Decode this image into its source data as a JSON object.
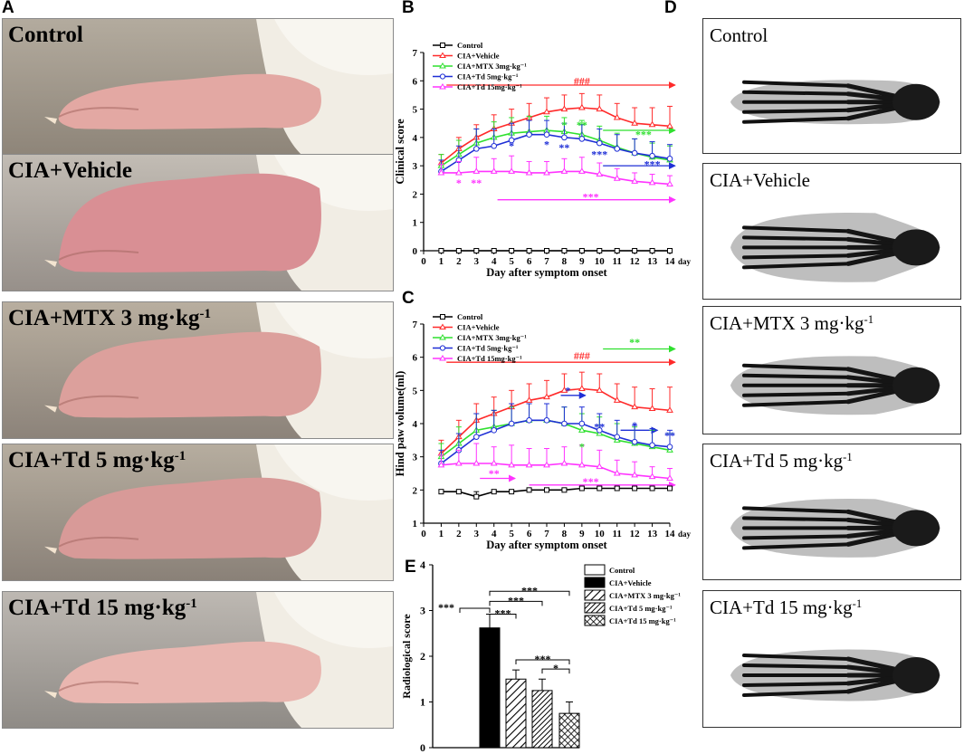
{
  "panels": {
    "A": "A",
    "B": "B",
    "C": "C",
    "D": "D",
    "E": "E"
  },
  "photos": [
    {
      "label": "Control",
      "sup": ""
    },
    {
      "label": "CIA+Vehicle",
      "sup": ""
    },
    {
      "label": "CIA+MTX 3 mg·kg",
      "sup": "-1"
    },
    {
      "label": "CIA+Td 5 mg·kg",
      "sup": "-1"
    },
    {
      "label": "CIA+Td 15 mg·kg",
      "sup": "-1"
    }
  ],
  "xrays": [
    {
      "label": "Control",
      "sup": ""
    },
    {
      "label": "CIA+Vehicle",
      "sup": ""
    },
    {
      "label": "CIA+MTX 3 mg·kg",
      "sup": "-1"
    },
    {
      "label": "CIA+Td 5 mg·kg",
      "sup": "-1"
    },
    {
      "label": "CIA+Td 15 mg·kg",
      "sup": "-1"
    }
  ],
  "colors": {
    "control": "#000000",
    "vehicle": "#ff2a2a",
    "mtx": "#2fe02f",
    "td5": "#1f2fd6",
    "td15": "#ff33ff"
  },
  "chart_data": [
    {
      "type": "line",
      "panel": "B",
      "xlabel": "Day after symptom onset",
      "ylabel": "Clinical score",
      "x_unit": "day",
      "xlim": [
        0,
        14
      ],
      "ylim": [
        0,
        7
      ],
      "x": [
        1,
        2,
        3,
        4,
        5,
        6,
        7,
        8,
        9,
        10,
        11,
        12,
        13,
        14
      ],
      "series": [
        {
          "name": "Control",
          "color": "#000000",
          "marker": "square",
          "values": [
            0,
            0,
            0,
            0,
            0,
            0,
            0,
            0,
            0,
            0,
            0,
            0,
            0,
            0
          ],
          "err": [
            0,
            0,
            0,
            0,
            0,
            0,
            0,
            0,
            0,
            0,
            0,
            0,
            0,
            0
          ]
        },
        {
          "name": "CIA+Vehicle",
          "color": "#ff2a2a",
          "marker": "triangle",
          "values": [
            3.1,
            3.6,
            4.0,
            4.3,
            4.5,
            4.7,
            4.9,
            5.0,
            5.05,
            5.0,
            4.7,
            4.5,
            4.45,
            4.4
          ],
          "err": [
            0.3,
            0.4,
            0.45,
            0.5,
            0.5,
            0.5,
            0.5,
            0.5,
            0.5,
            0.5,
            0.5,
            0.55,
            0.6,
            0.7
          ]
        },
        {
          "name": "CIA+MTX 3mg·kg⁻¹",
          "color": "#2fe02f",
          "marker": "triangle",
          "values": [
            3.0,
            3.4,
            3.8,
            4.0,
            4.15,
            4.2,
            4.25,
            4.2,
            4.1,
            3.9,
            3.65,
            3.45,
            3.3,
            3.2
          ],
          "err": [
            0.4,
            0.5,
            0.5,
            0.55,
            0.55,
            0.55,
            0.5,
            0.5,
            0.5,
            0.5,
            0.5,
            0.5,
            0.5,
            0.5
          ]
        },
        {
          "name": "CIA+Td 5mg·kg⁻¹",
          "color": "#1f2fd6",
          "marker": "circle",
          "values": [
            2.8,
            3.2,
            3.6,
            3.7,
            3.9,
            4.1,
            4.1,
            4.0,
            3.95,
            3.8,
            3.6,
            3.45,
            3.35,
            3.25
          ],
          "err": [
            0.4,
            0.5,
            0.7,
            0.6,
            0.6,
            0.5,
            0.5,
            0.5,
            0.5,
            0.5,
            0.5,
            0.5,
            0.5,
            0.5
          ]
        },
        {
          "name": "CIA+Td 15mg·kg⁻¹",
          "color": "#ff33ff",
          "marker": "triangle",
          "values": [
            2.75,
            2.75,
            2.8,
            2.8,
            2.8,
            2.75,
            2.75,
            2.8,
            2.8,
            2.7,
            2.55,
            2.45,
            2.4,
            2.35
          ],
          "err": [
            0.3,
            0.4,
            0.5,
            0.45,
            0.55,
            0.4,
            0.4,
            0.45,
            0.5,
            0.4,
            0.35,
            0.3,
            0.3,
            0.3
          ]
        }
      ],
      "annotations": [
        {
          "text": "###",
          "color": "#ff2a2a",
          "x": 9,
          "y": 6.0
        },
        {
          "text": "*",
          "color": "#ff33ff",
          "x": 2,
          "y": 2.4
        },
        {
          "text": "**",
          "color": "#ff33ff",
          "x": 3,
          "y": 2.4
        },
        {
          "text": "*",
          "color": "#1f2fd6",
          "x": 5,
          "y": 3.7
        },
        {
          "text": "*",
          "color": "#1f2fd6",
          "x": 7,
          "y": 3.75
        },
        {
          "text": "**",
          "color": "#1f2fd6",
          "x": 8,
          "y": 3.65
        },
        {
          "text": "*",
          "color": "#2fe02f",
          "x": 8,
          "y": 4.45
        },
        {
          "text": "**",
          "color": "#2fe02f",
          "x": 9,
          "y": 4.45
        },
        {
          "text": "***",
          "color": "#1f2fd6",
          "x": 10,
          "y": 3.4
        },
        {
          "text": "***",
          "color": "#2fe02f",
          "x": 12.5,
          "y": 4.1
        },
        {
          "text": "***",
          "color": "#1f2fd6",
          "x": 13,
          "y": 3.05
        },
        {
          "text": "***",
          "color": "#ff33ff",
          "x": 9.5,
          "y": 1.9
        }
      ],
      "arrows": [
        {
          "color": "#ff2a2a",
          "x1": 1.3,
          "x2": 14.3,
          "y": 5.85
        },
        {
          "color": "#2fe02f",
          "x1": 10.2,
          "x2": 14.3,
          "y": 4.25
        },
        {
          "color": "#1f2fd6",
          "x1": 10.2,
          "x2": 14.3,
          "y": 3.0
        },
        {
          "color": "#ff33ff",
          "x1": 4.2,
          "x2": 14.3,
          "y": 1.8
        }
      ]
    },
    {
      "type": "line",
      "panel": "C",
      "xlabel": "Day after symptom onset",
      "ylabel": "Hind paw volume(ml)",
      "x_unit": "day",
      "xlim": [
        0,
        14
      ],
      "ylim": [
        1,
        7
      ],
      "x": [
        1,
        2,
        3,
        4,
        5,
        6,
        7,
        8,
        9,
        10,
        11,
        12,
        13,
        14
      ],
      "series": [
        {
          "name": "Control",
          "color": "#000000",
          "marker": "square",
          "values": [
            1.95,
            1.95,
            1.8,
            1.95,
            1.95,
            2.0,
            2.0,
            2.0,
            2.05,
            2.05,
            2.05,
            2.05,
            2.05,
            2.05
          ],
          "err": [
            0.05,
            0.05,
            0.15,
            0.05,
            0.05,
            0.05,
            0.05,
            0.05,
            0.05,
            0.05,
            0.05,
            0.05,
            0.05,
            0.05
          ]
        },
        {
          "name": "CIA+Vehicle",
          "color": "#ff2a2a",
          "marker": "triangle",
          "values": [
            3.1,
            3.6,
            4.1,
            4.3,
            4.5,
            4.7,
            4.8,
            5.0,
            5.05,
            5.0,
            4.7,
            4.5,
            4.45,
            4.4
          ],
          "err": [
            0.4,
            0.5,
            0.5,
            0.5,
            0.5,
            0.5,
            0.5,
            0.5,
            0.5,
            0.5,
            0.5,
            0.6,
            0.6,
            0.7
          ]
        },
        {
          "name": "CIA+MTX 3mg·kg⁻¹",
          "color": "#2fe02f",
          "marker": "triangle",
          "values": [
            3.0,
            3.4,
            3.8,
            3.9,
            4.0,
            4.1,
            4.1,
            4.0,
            3.8,
            3.7,
            3.5,
            3.4,
            3.3,
            3.2
          ],
          "err": [
            0.4,
            0.5,
            0.5,
            0.5,
            0.5,
            0.5,
            0.5,
            0.5,
            0.5,
            0.5,
            0.5,
            0.5,
            0.5,
            0.5
          ]
        },
        {
          "name": "CIA+Td 5mg·kg⁻¹",
          "color": "#1f2fd6",
          "marker": "circle",
          "values": [
            2.8,
            3.2,
            3.6,
            3.8,
            4.0,
            4.1,
            4.1,
            4.0,
            4.0,
            3.8,
            3.6,
            3.45,
            3.35,
            3.3
          ],
          "err": [
            0.4,
            0.5,
            0.7,
            0.6,
            0.6,
            0.5,
            0.5,
            0.5,
            0.5,
            0.5,
            0.5,
            0.5,
            0.5,
            0.5
          ]
        },
        {
          "name": "CIA+Td 15mg·kg⁻¹",
          "color": "#ff33ff",
          "marker": "triangle",
          "values": [
            2.75,
            2.8,
            2.8,
            2.8,
            2.75,
            2.75,
            2.75,
            2.8,
            2.75,
            2.7,
            2.5,
            2.45,
            2.4,
            2.35
          ],
          "err": [
            0.3,
            0.4,
            0.6,
            0.5,
            0.6,
            0.5,
            0.5,
            0.5,
            0.6,
            0.5,
            0.4,
            0.4,
            0.3,
            0.3
          ]
        }
      ],
      "annotations": [
        {
          "text": "###",
          "color": "#ff2a2a",
          "x": 9,
          "y": 6.05
        },
        {
          "text": "**",
          "color": "#2fe02f",
          "x": 12,
          "y": 6.45
        },
        {
          "text": "*",
          "color": "#1f2fd6",
          "x": 8.2,
          "y": 5.0
        },
        {
          "text": "*",
          "color": "#2fe02f",
          "x": 9,
          "y": 3.3
        },
        {
          "text": "**",
          "color": "#1f2fd6",
          "x": 10,
          "y": 3.9
        },
        {
          "text": "*",
          "color": "#1f2fd6",
          "x": 12,
          "y": 3.95
        },
        {
          "text": "**",
          "color": "#1f2fd6",
          "x": 14,
          "y": 3.65
        },
        {
          "text": "**",
          "color": "#ff33ff",
          "x": 4,
          "y": 2.5
        },
        {
          "text": "***",
          "color": "#ff33ff",
          "x": 9.5,
          "y": 2.25
        }
      ],
      "arrows": [
        {
          "color": "#ff2a2a",
          "x1": 1.3,
          "x2": 14.3,
          "y": 5.85
        },
        {
          "color": "#2fe02f",
          "x1": 10.2,
          "x2": 14.3,
          "y": 6.25
        },
        {
          "color": "#1f2fd6",
          "x1": 7.8,
          "x2": 9.2,
          "y": 4.85
        },
        {
          "color": "#1f2fd6",
          "x1": 11.2,
          "x2": 13.3,
          "y": 3.8
        },
        {
          "color": "#ff33ff",
          "x1": 3.2,
          "x2": 5.2,
          "y": 2.35
        },
        {
          "color": "#ff33ff",
          "x1": 6.0,
          "x2": 14.3,
          "y": 2.15
        }
      ]
    },
    {
      "type": "bar",
      "panel": "E",
      "ylabel": "Radiological score",
      "ylim": [
        0,
        4
      ],
      "yticks": [
        0,
        1,
        2,
        3,
        4
      ],
      "categories": [
        "Control",
        "CIA+Vehicle",
        "CIA+MTX 3 mg·kg⁻¹",
        "CIA+Td 5 mg·kg⁻¹",
        "CIA+Td 15 mg·kg⁻¹"
      ],
      "values": [
        0,
        2.62,
        1.5,
        1.25,
        0.75
      ],
      "err": [
        0,
        0.3,
        0.2,
        0.25,
        0.25
      ],
      "fills": [
        "white",
        "black",
        "hatch",
        "hatch-dense",
        "crosshatch"
      ],
      "significance": [
        {
          "from": 0,
          "to": 1,
          "text": "***",
          "level": 3.05
        },
        {
          "from": 1,
          "to": 2,
          "text": "***",
          "level": 2.92
        },
        {
          "from": 1,
          "to": 3,
          "text": "***",
          "level": 3.2
        },
        {
          "from": 1,
          "to": 4,
          "text": "***",
          "level": 3.42
        },
        {
          "from": 2,
          "to": 4,
          "text": "***",
          "level": 1.92
        },
        {
          "from": 3,
          "to": 4,
          "text": "*",
          "level": 1.72
        }
      ]
    }
  ]
}
